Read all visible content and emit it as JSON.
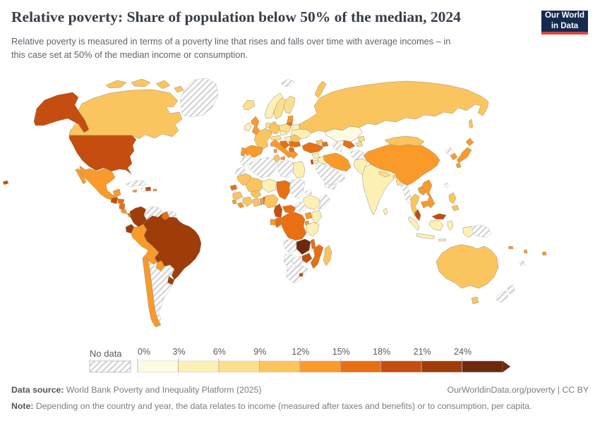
{
  "header": {
    "title": "Relative poverty: Share of population below 50% of the median, 2024",
    "subtitle_line1": "Relative poverty is measured in terms of a poverty line that rises and falls over time with average incomes – in",
    "subtitle_line2": "this case set at 50% of the median income or consumption.",
    "logo": {
      "line1": "Our World",
      "line2": "in Data",
      "bg_color": "#142a4e",
      "accent_color": "#d8483b"
    }
  },
  "legend": {
    "no_data_label": "No data",
    "tick_labels": [
      "0%",
      "3%",
      "6%",
      "9%",
      "12%",
      "15%",
      "18%",
      "21%",
      "24%"
    ],
    "hatch_color": "#cfcfcf"
  },
  "footer": {
    "data_source_label": "Data source:",
    "data_source_text": " World Bank Poverty and Inequality Platform (2025)",
    "link_text": "OurWorldinData.org/poverty | CC BY",
    "note_label": "Note:",
    "note_text": " Depending on the country and year, the data relates to income (measured after taxes and benefits) or to consumption, per capita."
  },
  "chart_data": {
    "type": "choropleth",
    "title": "Relative poverty: Share of population below 50% of the median, 2024",
    "unit": "% of population below 50% of median income or consumption",
    "year": "2024",
    "legend_position": "bottom",
    "bins": [
      {
        "range": "0-3%",
        "color": "#FEFBE3"
      },
      {
        "range": "3-6%",
        "color": "#FCF0B5"
      },
      {
        "range": "6-9%",
        "color": "#FBDF8D"
      },
      {
        "range": "9-12%",
        "color": "#FAC55F"
      },
      {
        "range": "12-15%",
        "color": "#F99A2B"
      },
      {
        "range": "15-18%",
        "color": "#E86F12"
      },
      {
        "range": "18-21%",
        "color": "#C44D0F"
      },
      {
        "range": "21-24%",
        "color": "#9E3D09"
      },
      {
        "range": "24%+",
        "color": "#6D2A0D"
      }
    ],
    "no_data": {
      "label": "No data",
      "fill": "hatch"
    },
    "countries": {
      "canada": {
        "name": "Canada",
        "value": "9-12%"
      },
      "united-states": {
        "name": "United States",
        "value": "18-21%"
      },
      "greenland": {
        "name": "Greenland",
        "value": "No data"
      },
      "mexico": {
        "name": "Mexico",
        "value": "12-15%"
      },
      "guatemala": {
        "name": "Guatemala",
        "value": "18-21%"
      },
      "honduras": {
        "name": "Honduras",
        "value": "15-18%"
      },
      "nicaragua": {
        "name": "Nicaragua",
        "value": "15-18%"
      },
      "costa-rica": {
        "name": "Costa Rica",
        "value": "12-15%"
      },
      "panama": {
        "name": "Panama",
        "value": "15-18%"
      },
      "cuba": {
        "name": "Cuba",
        "value": "No data"
      },
      "jamaica": {
        "name": "Jamaica",
        "value": "12-15%"
      },
      "haiti": {
        "name": "Haiti",
        "value": "No data"
      },
      "dominican-republic": {
        "name": "Dominican Republic",
        "value": "18-21%"
      },
      "puerto-rico": {
        "name": "Puerto Rico",
        "value": "12-15%"
      },
      "colombia": {
        "name": "Colombia",
        "value": "21-24%"
      },
      "venezuela": {
        "name": "Venezuela",
        "value": "No data"
      },
      "guyana": {
        "name": "Guyana",
        "value": "15-18%"
      },
      "suriname": {
        "name": "Suriname",
        "value": "No data"
      },
      "french-guiana": {
        "name": "French Guiana",
        "value": "No data"
      },
      "ecuador": {
        "name": "Ecuador",
        "value": "21-24%"
      },
      "peru": {
        "name": "Peru",
        "value": "12-15%"
      },
      "brazil": {
        "name": "Brazil",
        "value": "21-24%"
      },
      "bolivia": {
        "name": "Bolivia",
        "value": "12-15%"
      },
      "paraguay": {
        "name": "Paraguay",
        "value": "12-15%"
      },
      "uruguay": {
        "name": "Uruguay",
        "value": "21-24%"
      },
      "chile": {
        "name": "Chile",
        "value": "12-15%"
      },
      "argentina": {
        "name": "Argentina",
        "value": "No data"
      },
      "iceland": {
        "name": "Iceland",
        "value": "6-9%"
      },
      "ireland": {
        "name": "Ireland",
        "value": "3-6%"
      },
      "united-kingdom": {
        "name": "United Kingdom",
        "value": "12-15%"
      },
      "norway": {
        "name": "Norway",
        "value": "3-6%"
      },
      "sweden": {
        "name": "Sweden",
        "value": "6-9%"
      },
      "finland": {
        "name": "Finland",
        "value": "6-9%"
      },
      "denmark": {
        "name": "Denmark",
        "value": "3-6%"
      },
      "estonia": {
        "name": "Estonia",
        "value": "12-15%"
      },
      "latvia": {
        "name": "Latvia",
        "value": "12-15%"
      },
      "lithuania": {
        "name": "Lithuania",
        "value": "15-18%"
      },
      "poland": {
        "name": "Poland",
        "value": "6-9%"
      },
      "germany": {
        "name": "Germany",
        "value": "9-12%"
      },
      "netherlands": {
        "name": "Netherlands",
        "value": "6-9%"
      },
      "france": {
        "name": "France",
        "value": "9-12%"
      },
      "spain": {
        "name": "Spain",
        "value": "12-15%"
      },
      "portugal": {
        "name": "Portugal",
        "value": "12-15%"
      },
      "austria": {
        "name": "Austria",
        "value": "6-9%"
      },
      "czechia": {
        "name": "Czechia",
        "value": "3-6%"
      },
      "hungary": {
        "name": "Hungary",
        "value": "3-6%"
      },
      "italy": {
        "name": "Italy",
        "value": "12-15%"
      },
      "bosnia-herzegovina": {
        "name": "Bosnia and Herzegovina",
        "value": "15-18%"
      },
      "serbia": {
        "name": "Serbia",
        "value": "15-18%"
      },
      "north-macedonia": {
        "name": "North Macedonia",
        "value": "15-18%"
      },
      "greece": {
        "name": "Greece",
        "value": "12-15%"
      },
      "romania": {
        "name": "Romania",
        "value": "9-12%"
      },
      "bulgaria": {
        "name": "Bulgaria",
        "value": "15-18%"
      },
      "belarus": {
        "name": "Belarus",
        "value": "3-6%"
      },
      "ukraine": {
        "name": "Ukraine",
        "value": "3-6%"
      },
      "russia": {
        "name": "Russia",
        "value": "9-12%"
      },
      "svalbard": {
        "name": "Svalbard",
        "value": "No data"
      },
      "kazakhstan": {
        "name": "Kazakhstan",
        "value": "0-3%"
      },
      "uzbekistan": {
        "name": "Uzbekistan",
        "value": "15-18%"
      },
      "turkmenistan": {
        "name": "Turkmenistan",
        "value": "No data"
      },
      "kyrgyzstan": {
        "name": "Kyrgyzstan",
        "value": "6-9%"
      },
      "tajikistan": {
        "name": "Tajikistan",
        "value": "6-9%"
      },
      "georgia": {
        "name": "Georgia",
        "value": "9-12%"
      },
      "azerbaijan": {
        "name": "Azerbaijan",
        "value": "15-18%"
      },
      "armenia": {
        "name": "Armenia",
        "value": "6-9%"
      },
      "turkey": {
        "name": "Turkey",
        "value": "15-18%"
      },
      "syria": {
        "name": "Syria",
        "value": "3-6%"
      },
      "iraq": {
        "name": "Iraq",
        "value": "3-6%"
      },
      "israel": {
        "name": "Israel",
        "value": "18-21%"
      },
      "jordan": {
        "name": "Jordan",
        "value": "3-6%"
      },
      "saudi-arabia": {
        "name": "Saudi Arabia",
        "value": "No data"
      },
      "yemen": {
        "name": "Yemen",
        "value": "No data"
      },
      "oman": {
        "name": "Oman",
        "value": "No data"
      },
      "iran": {
        "name": "Iran",
        "value": "12-15%"
      },
      "afghanistan": {
        "name": "Afghanistan",
        "value": "No data"
      },
      "pakistan": {
        "name": "Pakistan",
        "value": "3-6%"
      },
      "india": {
        "name": "India",
        "value": "3-6%"
      },
      "nepal": {
        "name": "Nepal",
        "value": "6-9%"
      },
      "bhutan": {
        "name": "Bhutan",
        "value": "6-9%"
      },
      "bangladesh": {
        "name": "Bangladesh",
        "value": "6-9%"
      },
      "sri-lanka": {
        "name": "Sri Lanka",
        "value": "3-6%"
      },
      "china": {
        "name": "China",
        "value": "12-15%"
      },
      "mongolia": {
        "name": "Mongolia",
        "value": "9-12%"
      },
      "north-korea": {
        "name": "North Korea",
        "value": "No data"
      },
      "south-korea": {
        "name": "South Korea",
        "value": "12-15%"
      },
      "japan": {
        "name": "Japan",
        "value": "12-15%"
      },
      "taiwan": {
        "name": "Taiwan",
        "value": "No data"
      },
      "myanmar": {
        "name": "Myanmar",
        "value": "No data"
      },
      "thailand": {
        "name": "Thailand",
        "value": "9-12%"
      },
      "laos": {
        "name": "Laos",
        "value": "12-15%"
      },
      "vietnam": {
        "name": "Vietnam",
        "value": "12-15%"
      },
      "cambodia": {
        "name": "Cambodia",
        "value": "12-15%"
      },
      "malaysia": {
        "name": "Malaysia",
        "value": "18-21%"
      },
      "indonesia": {
        "name": "Indonesia",
        "value": "3-6%"
      },
      "philippines": {
        "name": "Philippines",
        "value": "9-12%"
      },
      "papua-new-guinea": {
        "name": "Papua New Guinea",
        "value": "No data"
      },
      "australia": {
        "name": "Australia",
        "value": "9-12%"
      },
      "new-zealand": {
        "name": "New Zealand",
        "value": "No data"
      },
      "new-caledonia": {
        "name": "New Caledonia",
        "value": "No data"
      },
      "fiji": {
        "name": "Fiji",
        "value": "12-15%"
      },
      "vanuatu": {
        "name": "Vanuatu",
        "value": "12-15%"
      },
      "solomon-islands": {
        "name": "Solomon Islands",
        "value": "12-15%"
      },
      "morocco": {
        "name": "Morocco",
        "value": "No data"
      },
      "western-sahara": {
        "name": "Western Sahara",
        "value": "No data"
      },
      "algeria": {
        "name": "Algeria",
        "value": "No data"
      },
      "tunisia": {
        "name": "Tunisia",
        "value": "9-12%"
      },
      "libya": {
        "name": "Libya",
        "value": "No data"
      },
      "egypt": {
        "name": "Egypt",
        "value": "3-6%"
      },
      "mauritania": {
        "name": "Mauritania",
        "value": "9-12%"
      },
      "mali": {
        "name": "Mali",
        "value": "9-12%"
      },
      "niger": {
        "name": "Niger",
        "value": "3-6%"
      },
      "chad": {
        "name": "Chad",
        "value": "15-18%"
      },
      "sudan": {
        "name": "Sudan",
        "value": "No data"
      },
      "eritrea": {
        "name": "Eritrea",
        "value": "No data"
      },
      "ethiopia": {
        "name": "Ethiopia",
        "value": "3-6%"
      },
      "somalia": {
        "name": "Somalia",
        "value": "No data"
      },
      "senegal": {
        "name": "Senegal",
        "value": "15-18%"
      },
      "guinea": {
        "name": "Guinea",
        "value": "9-12%"
      },
      "sierra-leone": {
        "name": "Sierra Leone",
        "value": "12-15%"
      },
      "liberia": {
        "name": "Liberia",
        "value": "12-15%"
      },
      "cote-divoire": {
        "name": "Cote d'Ivoire",
        "value": "9-12%"
      },
      "ghana": {
        "name": "Ghana",
        "value": "9-12%"
      },
      "togo": {
        "name": "Togo",
        "value": "12-15%"
      },
      "benin": {
        "name": "Benin",
        "value": "15-18%"
      },
      "burkina-faso": {
        "name": "Burkina Faso",
        "value": "9-12%"
      },
      "nigeria": {
        "name": "Nigeria",
        "value": "9-12%"
      },
      "cameroon": {
        "name": "Cameroon",
        "value": "18-21%"
      },
      "central-african-republic": {
        "name": "Central African Republic",
        "value": "15-18%"
      },
      "south-sudan": {
        "name": "South Sudan",
        "value": "No data"
      },
      "uganda": {
        "name": "Uganda",
        "value": "12-15%"
      },
      "kenya": {
        "name": "Kenya",
        "value": "3-6%"
      },
      "rwanda": {
        "name": "Rwanda",
        "value": "12-15%"
      },
      "dr-congo": {
        "name": "Democratic Republic of Congo",
        "value": "15-18%"
      },
      "congo": {
        "name": "Congo",
        "value": "15-18%"
      },
      "gabon": {
        "name": "Gabon",
        "value": "12-15%"
      },
      "tanzania": {
        "name": "Tanzania",
        "value": "3-6%"
      },
      "angola": {
        "name": "Angola",
        "value": "No data"
      },
      "zambia": {
        "name": "Zambia",
        "value": "24%+"
      },
      "malawi": {
        "name": "Malawi",
        "value": "15-18%"
      },
      "mozambique": {
        "name": "Mozambique",
        "value": "15-18%"
      },
      "zimbabwe": {
        "name": "Zimbabwe",
        "value": "18-21%"
      },
      "botswana": {
        "name": "Botswana",
        "value": "No data"
      },
      "namibia": {
        "name": "Namibia",
        "value": "No data"
      },
      "south-africa": {
        "name": "South Africa",
        "value": "No data"
      },
      "lesotho": {
        "name": "Lesotho",
        "value": "18-21%"
      },
      "madagascar": {
        "name": "Madagascar",
        "value": "9-12%"
      }
    }
  }
}
